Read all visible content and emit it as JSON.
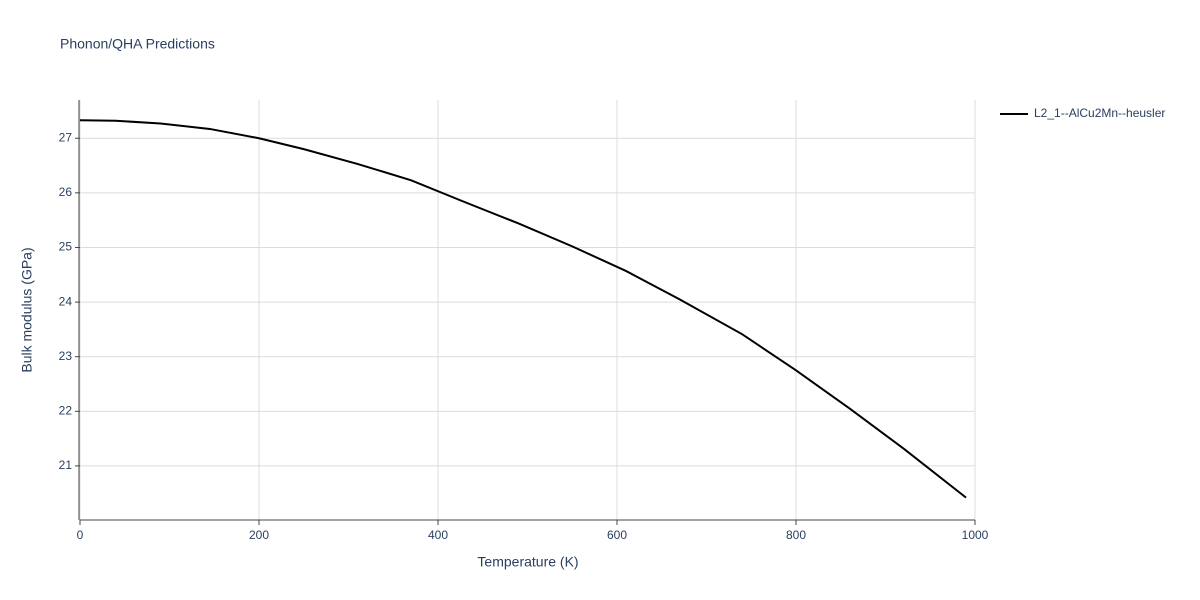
{
  "chart_data": {
    "type": "line",
    "title": "Phonon/QHA Predictions",
    "x_label": "Temperature (K)",
    "y_label": "Bulk modulus (GPa)",
    "x": [
      0,
      40,
      90,
      145,
      200,
      250,
      310,
      370,
      430,
      490,
      550,
      610,
      670,
      740,
      800,
      860,
      920,
      990
    ],
    "series": [
      {
        "name": "L2_1--AlCu2Mn--heusler",
        "color": "#000000",
        "values": [
          27.33,
          27.32,
          27.27,
          27.17,
          27.0,
          26.8,
          26.53,
          26.23,
          25.83,
          25.44,
          25.02,
          24.57,
          24.05,
          23.41,
          22.75,
          22.05,
          21.32,
          20.42
        ]
      }
    ],
    "xlim": [
      0,
      1000
    ],
    "xticks": [
      0,
      200,
      400,
      600,
      800,
      1000
    ],
    "ylim": [
      20.01,
      27.7
    ],
    "yticks": [
      21,
      22,
      23,
      24,
      25,
      26,
      27
    ],
    "grid": true,
    "legend": "right"
  }
}
